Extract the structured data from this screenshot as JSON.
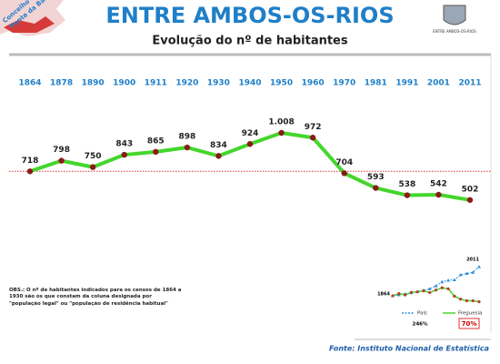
{
  "header": {
    "logo_text": [
      "Concelho de",
      "Ponte da Barca"
    ],
    "crest_caption": "ENTRE AMBOS-OS-RIOS"
  },
  "chart_data": [
    {
      "type": "line",
      "title": "ENTRE AMBOS-OS-RIOS",
      "subtitle": "Evolução do nº de habitantes",
      "categories": [
        "1864",
        "1878",
        "1890",
        "1900",
        "1911",
        "1920",
        "1930",
        "1940",
        "1950",
        "1960",
        "1970",
        "1981",
        "1991",
        "2001",
        "2011"
      ],
      "values": [
        718,
        798,
        750,
        843,
        865,
        898,
        834,
        924,
        1008,
        972,
        704,
        593,
        538,
        542,
        502
      ],
      "value_labels": [
        "718",
        "798",
        "750",
        "843",
        "865",
        "898",
        "834",
        "924",
        "1.008",
        "972",
        "704",
        "593",
        "538",
        "542",
        "502"
      ],
      "color": "#44d62c",
      "marker_color": "#8b1a1a",
      "reference_color": "#e03030",
      "ylim": [
        0,
        1200
      ]
    },
    {
      "type": "line",
      "categories": [
        "1864",
        "1878",
        "1890",
        "1900",
        "1911",
        "1920",
        "1930",
        "1940",
        "1950",
        "1960",
        "1970",
        "1981",
        "1991",
        "2001",
        "2011"
      ],
      "series": [
        {
          "name": "País",
          "color": "#2b8fd8",
          "values": [
            100,
            105,
            110,
            115,
            120,
            127,
            135,
            150,
            170,
            178,
            180,
            205,
            212,
            218,
            246
          ]
        },
        {
          "name": "Freguesia",
          "color": "#c0392b",
          "values": [
            100,
            111,
            104,
            117,
            120,
            125,
            116,
            129,
            140,
            135,
            98,
            83,
            75,
            75,
            70
          ]
        }
      ],
      "start_label": "1864",
      "end_label": "2011",
      "annotations": [
        "246%",
        "70%"
      ],
      "ylim": [
        50,
        260
      ]
    }
  ],
  "note": "OBS.: O nº de habitantes indicados para os censos de 1864 a 1930 são os que constam da coluna designada por \"população legal\" ou \"população de residência habitual\"",
  "source": "Fonte: Instituto Nacional de Estatística"
}
